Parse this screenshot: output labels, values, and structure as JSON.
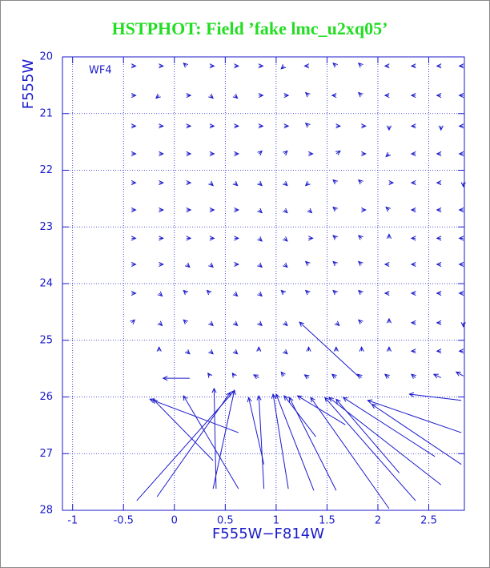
{
  "chart_data": {
    "type": "quiver",
    "title": "HSTPHOT: Field ’fake lmc_u2xq05’",
    "x_label": "F555W−F814W",
    "y_label": "F555W",
    "annotation": "WF4",
    "color": "#1a1acc",
    "title_color": "#22dd22",
    "grid": true,
    "xlim": [
      -1.1,
      2.85
    ],
    "ylim": [
      28,
      20
    ],
    "xticks": [
      -1,
      -0.5,
      0,
      0.5,
      1,
      1.5,
      2,
      2.5
    ],
    "yticks": [
      20,
      21,
      22,
      23,
      24,
      25,
      26,
      27,
      28
    ],
    "vectors": [
      [
        -0.42,
        20.16,
        -0.38,
        20.16
      ],
      [
        -0.15,
        20.16,
        -0.11,
        20.16
      ],
      [
        0.12,
        20.16,
        0.09,
        20.11
      ],
      [
        0.35,
        20.16,
        0.39,
        20.16
      ],
      [
        0.59,
        20.16,
        0.63,
        20.16
      ],
      [
        0.83,
        20.16,
        0.87,
        20.16
      ],
      [
        1.08,
        20.16,
        1.05,
        20.21
      ],
      [
        1.32,
        20.16,
        1.28,
        20.16
      ],
      [
        1.59,
        20.16,
        1.56,
        20.11
      ],
      [
        1.84,
        20.16,
        1.81,
        20.11
      ],
      [
        2.11,
        20.16,
        2.07,
        20.16
      ],
      [
        2.37,
        20.16,
        2.33,
        20.16
      ],
      [
        2.62,
        20.16,
        2.58,
        20.16
      ],
      [
        2.84,
        20.16,
        2.8,
        20.16
      ],
      [
        -0.42,
        20.68,
        -0.38,
        20.68
      ],
      [
        -0.15,
        20.68,
        -0.18,
        20.73
      ],
      [
        0.12,
        20.68,
        0.16,
        20.68
      ],
      [
        0.35,
        20.68,
        0.38,
        20.73
      ],
      [
        0.59,
        20.68,
        0.62,
        20.73
      ],
      [
        0.83,
        20.68,
        0.87,
        20.68
      ],
      [
        1.08,
        20.68,
        1.12,
        20.68
      ],
      [
        1.32,
        20.68,
        1.29,
        20.63
      ],
      [
        1.59,
        20.68,
        1.55,
        20.68
      ],
      [
        1.84,
        20.68,
        1.81,
        20.63
      ],
      [
        2.11,
        20.68,
        2.07,
        20.68
      ],
      [
        2.37,
        20.68,
        2.33,
        20.68
      ],
      [
        2.62,
        20.68,
        2.58,
        20.68
      ],
      [
        2.84,
        20.68,
        2.8,
        20.68
      ],
      [
        -0.42,
        21.22,
        -0.38,
        21.22
      ],
      [
        -0.15,
        21.22,
        -0.11,
        21.22
      ],
      [
        0.12,
        21.22,
        0.16,
        21.22
      ],
      [
        0.35,
        21.22,
        0.39,
        21.22
      ],
      [
        0.59,
        21.22,
        0.63,
        21.22
      ],
      [
        0.83,
        21.22,
        0.87,
        21.22
      ],
      [
        1.08,
        21.22,
        1.12,
        21.22
      ],
      [
        1.32,
        21.22,
        1.29,
        21.17
      ],
      [
        1.59,
        21.22,
        1.63,
        21.22
      ],
      [
        1.84,
        21.22,
        1.88,
        21.22
      ],
      [
        2.11,
        21.22,
        2.11,
        21.29
      ],
      [
        2.37,
        21.22,
        2.33,
        21.22
      ],
      [
        2.62,
        21.22,
        2.62,
        21.29
      ],
      [
        2.84,
        21.22,
        2.8,
        21.22
      ],
      [
        -0.42,
        21.71,
        -0.38,
        21.71
      ],
      [
        -0.15,
        21.71,
        -0.11,
        21.71
      ],
      [
        0.12,
        21.71,
        0.16,
        21.71
      ],
      [
        0.35,
        21.71,
        0.39,
        21.71
      ],
      [
        0.59,
        21.71,
        0.63,
        21.71
      ],
      [
        0.83,
        21.71,
        0.86,
        21.66
      ],
      [
        1.08,
        21.71,
        1.11,
        21.66
      ],
      [
        1.32,
        21.71,
        1.36,
        21.71
      ],
      [
        1.59,
        21.71,
        1.63,
        21.66
      ],
      [
        1.84,
        21.71,
        1.88,
        21.71
      ],
      [
        2.11,
        21.71,
        2.08,
        21.76
      ],
      [
        2.37,
        21.71,
        2.33,
        21.71
      ],
      [
        2.62,
        21.71,
        2.58,
        21.71
      ],
      [
        2.84,
        21.71,
        2.8,
        21.71
      ],
      [
        -0.42,
        22.22,
        -0.38,
        22.22
      ],
      [
        -0.15,
        22.22,
        -0.11,
        22.22
      ],
      [
        0.12,
        22.22,
        0.16,
        22.22
      ],
      [
        0.35,
        22.22,
        0.38,
        22.27
      ],
      [
        0.59,
        22.22,
        0.62,
        22.27
      ],
      [
        0.83,
        22.22,
        0.86,
        22.27
      ],
      [
        1.08,
        22.22,
        1.11,
        22.27
      ],
      [
        1.32,
        22.22,
        1.29,
        22.27
      ],
      [
        1.59,
        22.22,
        1.56,
        22.17
      ],
      [
        1.84,
        22.22,
        1.81,
        22.17
      ],
      [
        2.11,
        22.22,
        2.15,
        22.22
      ],
      [
        2.37,
        22.22,
        2.33,
        22.22
      ],
      [
        2.62,
        22.22,
        2.58,
        22.22
      ],
      [
        2.84,
        22.22,
        2.84,
        22.29
      ],
      [
        -0.42,
        22.7,
        -0.38,
        22.7
      ],
      [
        -0.15,
        22.7,
        -0.11,
        22.7
      ],
      [
        0.12,
        22.7,
        0.16,
        22.7
      ],
      [
        0.35,
        22.7,
        0.39,
        22.7
      ],
      [
        0.59,
        22.7,
        0.63,
        22.7
      ],
      [
        0.83,
        22.7,
        0.86,
        22.75
      ],
      [
        1.08,
        22.7,
        1.11,
        22.75
      ],
      [
        1.32,
        22.7,
        1.35,
        22.75
      ],
      [
        1.59,
        22.7,
        1.56,
        22.65
      ],
      [
        1.84,
        22.7,
        1.88,
        22.7
      ],
      [
        2.11,
        22.7,
        2.08,
        22.65
      ],
      [
        2.37,
        22.7,
        2.33,
        22.7
      ],
      [
        2.62,
        22.7,
        2.58,
        22.7
      ],
      [
        2.84,
        22.7,
        2.8,
        22.7
      ],
      [
        -0.42,
        23.2,
        -0.38,
        23.2
      ],
      [
        -0.15,
        23.2,
        -0.11,
        23.2
      ],
      [
        0.12,
        23.2,
        0.16,
        23.2
      ],
      [
        0.35,
        23.2,
        0.39,
        23.2
      ],
      [
        0.59,
        23.2,
        0.63,
        23.2
      ],
      [
        0.83,
        23.2,
        0.86,
        23.25
      ],
      [
        1.08,
        23.2,
        1.11,
        23.25
      ],
      [
        1.32,
        23.2,
        1.36,
        23.2
      ],
      [
        1.59,
        23.2,
        1.56,
        23.15
      ],
      [
        1.84,
        23.2,
        1.81,
        23.15
      ],
      [
        2.11,
        23.2,
        2.11,
        23.13
      ],
      [
        2.37,
        23.2,
        2.33,
        23.2
      ],
      [
        2.62,
        23.2,
        2.58,
        23.2
      ],
      [
        2.84,
        23.2,
        2.8,
        23.2
      ],
      [
        -0.42,
        23.66,
        -0.38,
        23.66
      ],
      [
        -0.15,
        23.66,
        -0.11,
        23.66
      ],
      [
        0.12,
        23.66,
        0.15,
        23.71
      ],
      [
        0.35,
        23.66,
        0.38,
        23.71
      ],
      [
        0.59,
        23.66,
        0.63,
        23.66
      ],
      [
        0.83,
        23.66,
        0.86,
        23.71
      ],
      [
        1.08,
        23.66,
        1.11,
        23.71
      ],
      [
        1.32,
        23.66,
        1.29,
        23.61
      ],
      [
        1.59,
        23.66,
        1.56,
        23.61
      ],
      [
        1.84,
        23.66,
        1.81,
        23.61
      ],
      [
        2.11,
        23.66,
        2.07,
        23.66
      ],
      [
        2.37,
        23.66,
        2.33,
        23.66
      ],
      [
        2.62,
        23.66,
        2.58,
        23.66
      ],
      [
        2.84,
        23.66,
        2.8,
        23.66
      ],
      [
        -0.42,
        24.17,
        -0.38,
        24.17
      ],
      [
        -0.15,
        24.17,
        -0.12,
        24.22
      ],
      [
        0.12,
        24.17,
        0.09,
        24.12
      ],
      [
        0.35,
        24.17,
        0.32,
        24.12
      ],
      [
        0.59,
        24.17,
        0.62,
        24.22
      ],
      [
        0.83,
        24.17,
        0.86,
        24.22
      ],
      [
        1.08,
        24.17,
        1.05,
        24.12
      ],
      [
        1.32,
        24.17,
        1.29,
        24.12
      ],
      [
        1.59,
        24.17,
        1.56,
        24.12
      ],
      [
        1.84,
        24.17,
        1.81,
        24.12
      ],
      [
        2.11,
        24.17,
        2.07,
        24.17
      ],
      [
        2.37,
        24.17,
        2.33,
        24.17
      ],
      [
        2.62,
        24.17,
        2.58,
        24.17
      ],
      [
        2.84,
        24.17,
        2.8,
        24.17
      ],
      [
        -0.42,
        24.69,
        -0.39,
        24.64
      ],
      [
        -0.15,
        24.69,
        -0.12,
        24.74
      ],
      [
        0.12,
        24.69,
        0.09,
        24.64
      ],
      [
        0.35,
        24.69,
        0.38,
        24.74
      ],
      [
        0.59,
        24.69,
        0.62,
        24.74
      ],
      [
        0.83,
        24.69,
        0.86,
        24.74
      ],
      [
        1.08,
        24.69,
        1.11,
        24.74
      ],
      [
        1.59,
        24.69,
        1.62,
        24.74
      ],
      [
        1.84,
        24.69,
        1.81,
        24.64
      ],
      [
        2.11,
        24.69,
        2.11,
        24.62
      ],
      [
        2.37,
        24.69,
        2.33,
        24.69
      ],
      [
        2.62,
        24.69,
        2.58,
        24.69
      ],
      [
        2.84,
        24.69,
        2.84,
        24.76
      ],
      [
        -0.15,
        25.19,
        -0.15,
        25.12
      ],
      [
        0.12,
        25.19,
        0.15,
        25.24
      ],
      [
        0.35,
        25.19,
        0.38,
        25.24
      ],
      [
        0.59,
        25.19,
        0.62,
        25.24
      ],
      [
        0.83,
        25.19,
        0.83,
        25.12
      ],
      [
        1.08,
        25.19,
        1.11,
        25.24
      ],
      [
        1.32,
        25.19,
        1.32,
        25.12
      ],
      [
        1.59,
        25.19,
        1.59,
        25.12
      ],
      [
        1.84,
        25.19,
        1.84,
        25.12
      ],
      [
        2.11,
        25.19,
        2.11,
        25.12
      ],
      [
        2.37,
        25.19,
        2.33,
        25.19
      ],
      [
        2.62,
        25.19,
        2.58,
        25.19
      ],
      [
        2.84,
        25.19,
        2.8,
        25.19
      ],
      [
        0.35,
        25.63,
        0.33,
        25.58
      ],
      [
        0.59,
        25.63,
        0.57,
        25.58
      ],
      [
        0.83,
        25.66,
        0.78,
        25.61
      ],
      [
        1.08,
        25.63,
        1.05,
        25.56
      ],
      [
        1.32,
        25.66,
        1.28,
        25.61
      ],
      [
        1.59,
        25.66,
        1.55,
        25.6
      ],
      [
        1.84,
        25.66,
        1.8,
        25.6
      ],
      [
        2.11,
        25.66,
        2.07,
        25.6
      ],
      [
        2.37,
        25.66,
        2.33,
        25.6
      ],
      [
        2.62,
        25.66,
        2.55,
        25.6
      ],
      [
        2.84,
        25.63,
        2.77,
        25.56
      ],
      [
        -0.37,
        27.83,
        0.59,
        25.89
      ],
      [
        -0.17,
        27.76,
        0.55,
        25.92
      ],
      [
        0.38,
        27.62,
        0.59,
        25.88
      ],
      [
        0.41,
        27.62,
        0.39,
        25.85
      ],
      [
        0.63,
        27.62,
        0.09,
        25.98
      ],
      [
        0.38,
        27.12,
        -0.21,
        26.04
      ],
      [
        0.63,
        26.63,
        -0.24,
        26.04
      ],
      [
        0.88,
        27.62,
        0.83,
        25.98
      ],
      [
        0.88,
        27.19,
        0.73,
        26.01
      ],
      [
        1.12,
        27.62,
        0.97,
        25.95
      ],
      [
        1.37,
        27.65,
        1.0,
        25.95
      ],
      [
        1.39,
        26.7,
        1.08,
        25.98
      ],
      [
        1.59,
        27.65,
        1.13,
        26.01
      ],
      [
        1.68,
        26.49,
        1.21,
        25.98
      ],
      [
        2.11,
        27.97,
        1.34,
        26.01
      ],
      [
        2.37,
        27.83,
        1.48,
        26.01
      ],
      [
        2.62,
        27.55,
        1.52,
        26.01
      ],
      [
        2.56,
        27.05,
        1.66,
        26.01
      ],
      [
        2.82,
        26.63,
        1.9,
        26.06
      ],
      [
        2.82,
        26.06,
        2.31,
        25.95
      ],
      [
        1.81,
        25.64,
        1.23,
        24.68
      ],
      [
        0.15,
        25.67,
        -0.11,
        25.67
      ],
      [
        2.82,
        27.19,
        1.94,
        26.13
      ],
      [
        2.21,
        27.34,
        1.59,
        26.04
      ]
    ]
  }
}
